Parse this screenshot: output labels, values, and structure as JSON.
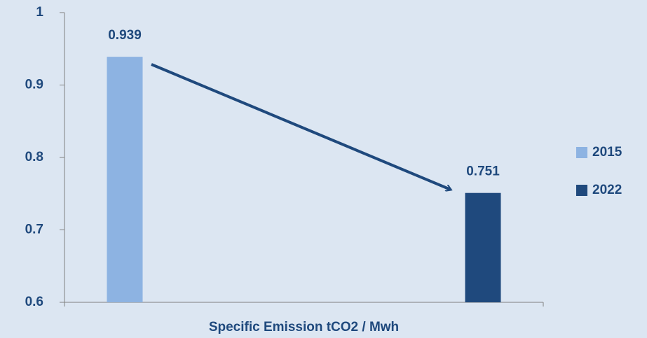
{
  "chart_data": {
    "type": "bar",
    "categories": [
      "Specific Emission  tCO2 / Mwh"
    ],
    "series": [
      {
        "name": "2015",
        "color": "#8db3e2",
        "values": [
          0.939
        ]
      },
      {
        "name": "2022",
        "color": "#1f497d",
        "values": [
          0.751
        ]
      }
    ],
    "ylim": [
      0.6,
      1
    ],
    "yticks": [
      0.6,
      0.7,
      0.8,
      0.9,
      1
    ],
    "legend": "right"
  }
}
